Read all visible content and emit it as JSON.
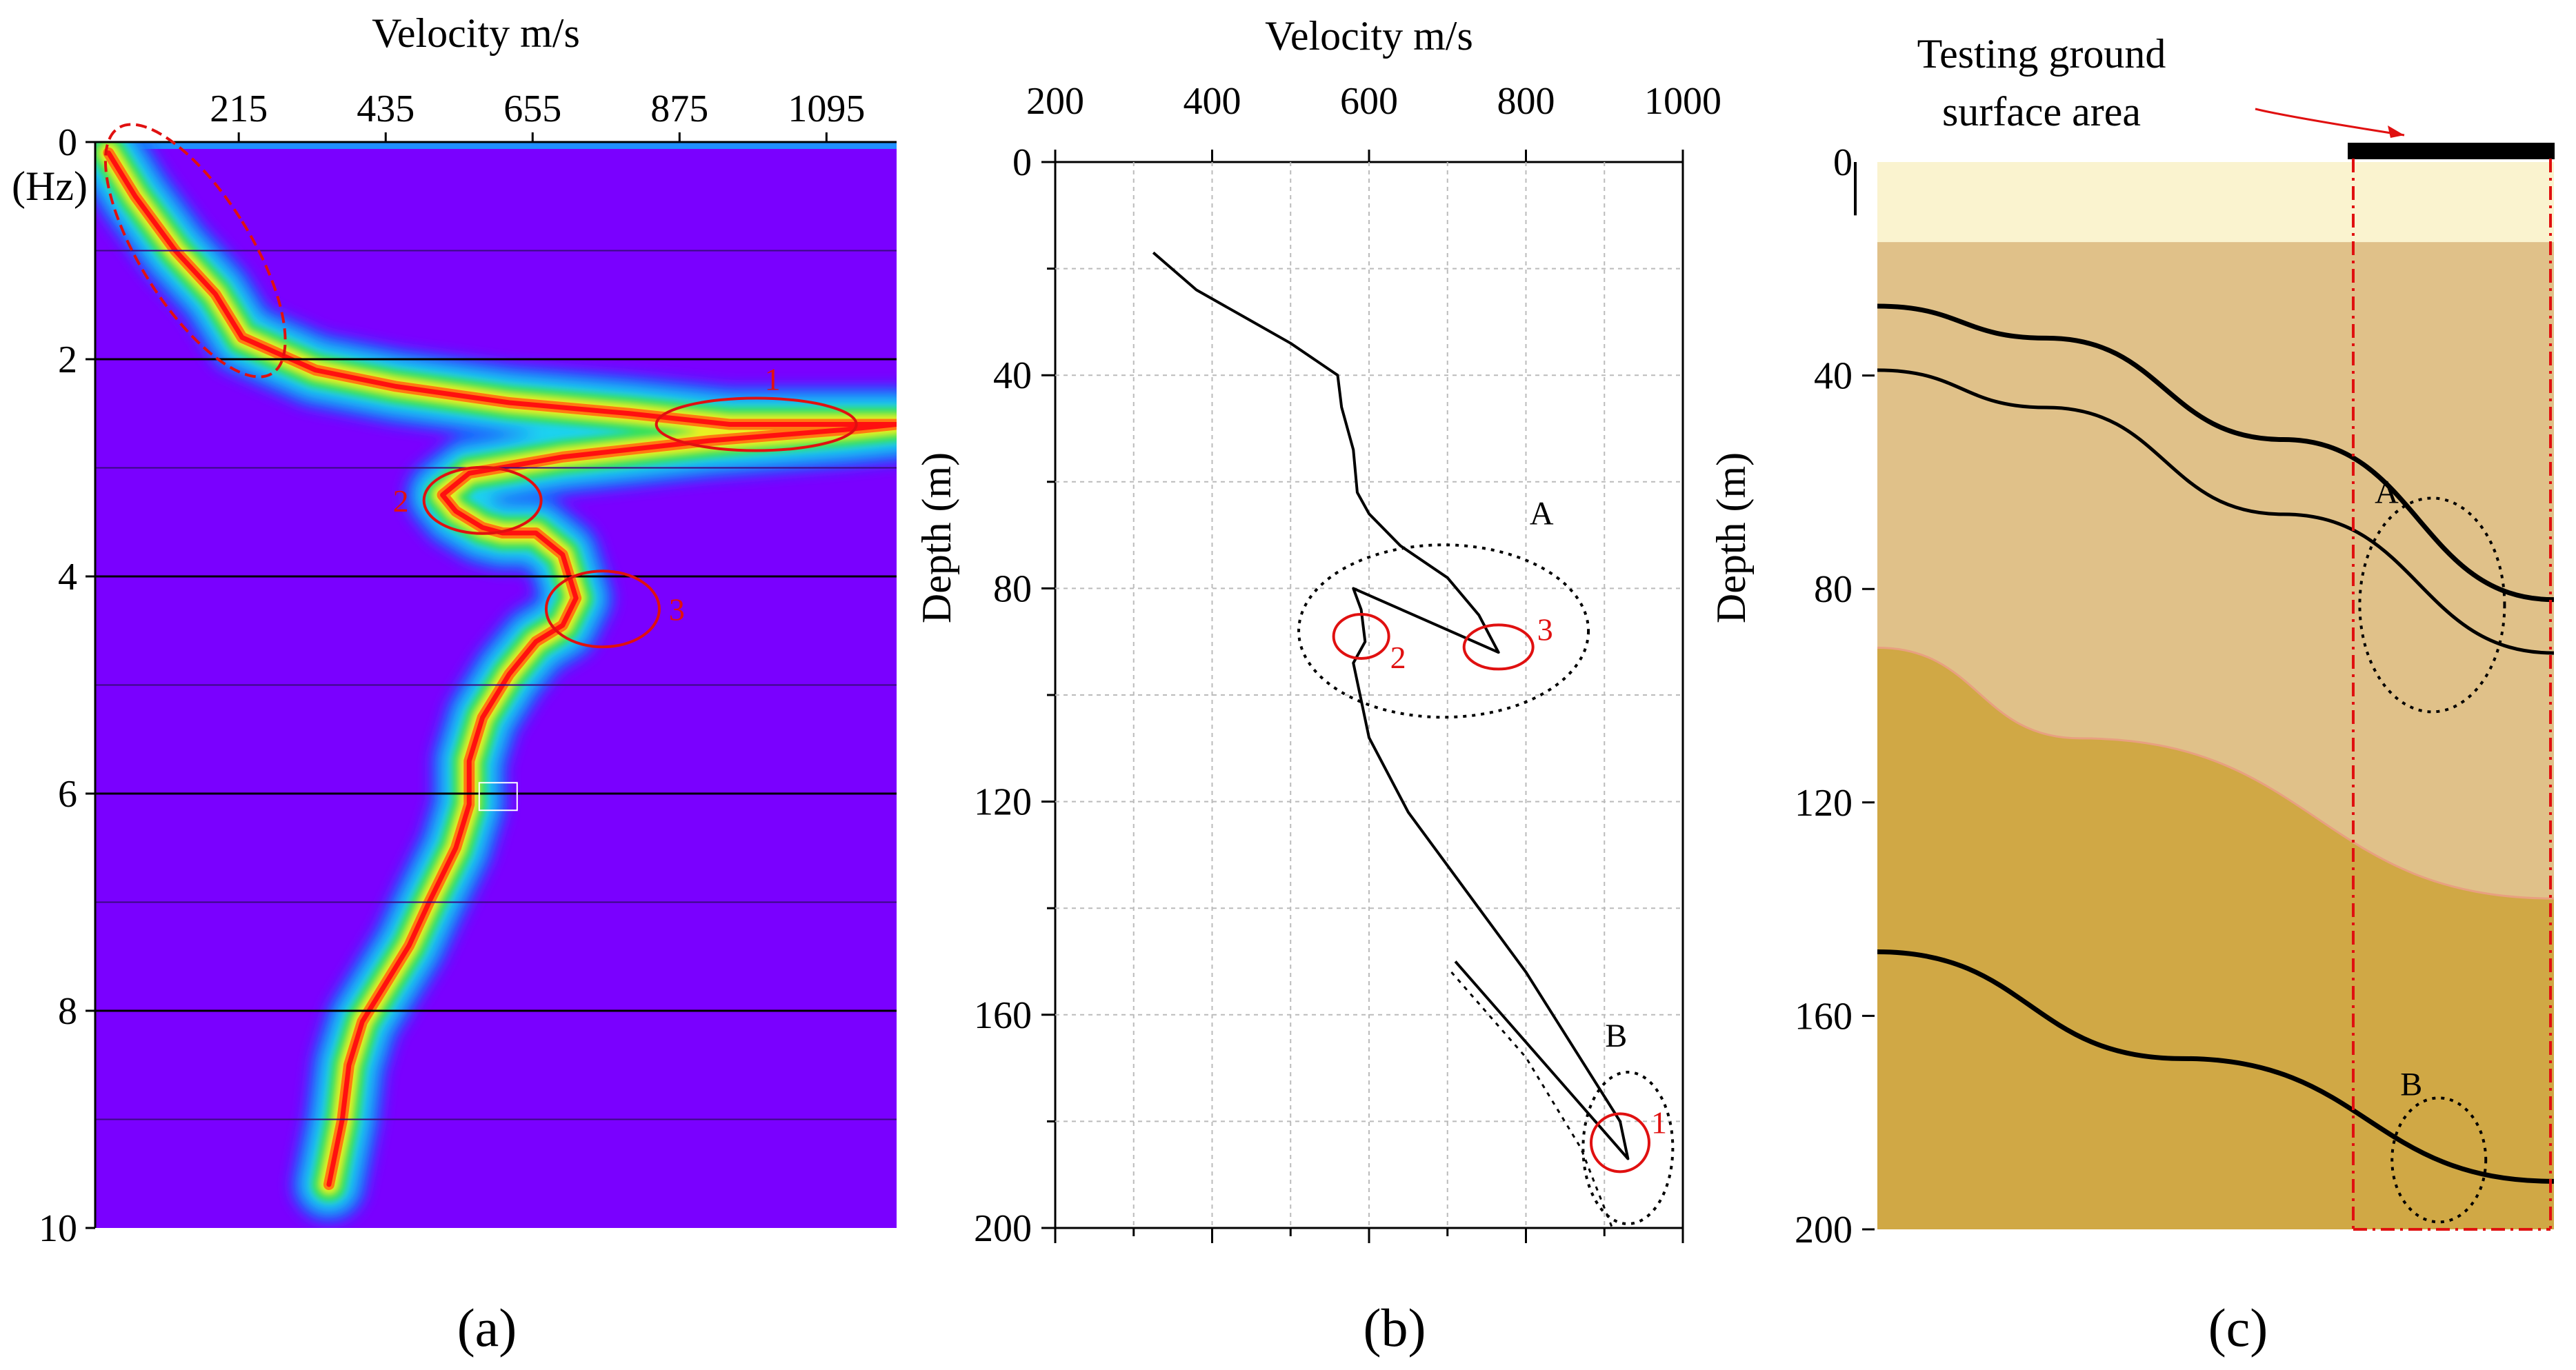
{
  "colors": {
    "spectrum_background": "#7a00ff",
    "spectrum_top_band": "#2090ff",
    "red_annotation": "#e01010",
    "ground_surface_fill": "#faf3cf",
    "layer_upper_fill": "#e0c189",
    "layer_lower_fill": "#d0a845",
    "curve_color": "#000000"
  },
  "panel_labels": [
    "(a)",
    "(b)",
    "(c)"
  ],
  "chart_data": [
    {
      "id": "a",
      "type": "heatmap",
      "title": "",
      "xlabel": "Velocity m/s",
      "ylabel": "(Hz)",
      "x_ticks": [
        "215",
        "435",
        "655",
        "875",
        "1095"
      ],
      "x_tick_values": [
        215,
        435,
        655,
        875,
        1095
      ],
      "y_ticks": [
        "0",
        "2",
        "4",
        "6",
        "8",
        "10"
      ],
      "y_tick_values": [
        0,
        2,
        4,
        6,
        8,
        10
      ],
      "xlim": [
        0,
        1200
      ],
      "ylim": [
        0,
        10
      ],
      "ridge": {
        "velocity": [
          20,
          60,
          120,
          180,
          220,
          330,
          450,
          620,
          800,
          950,
          1200,
          1120,
          920,
          700,
          560,
          520,
          540,
          580,
          610,
          660,
          700,
          720,
          700,
          660,
          620,
          580,
          560,
          560,
          540,
          500,
          470,
          430,
          400,
          380,
          370,
          350
        ],
        "frequency": [
          0.1,
          0.5,
          1.0,
          1.4,
          1.8,
          2.1,
          2.25,
          2.4,
          2.5,
          2.6,
          2.6,
          2.65,
          2.75,
          2.9,
          3.05,
          3.25,
          3.4,
          3.55,
          3.6,
          3.6,
          3.8,
          4.2,
          4.45,
          4.6,
          4.9,
          5.3,
          5.7,
          6.1,
          6.5,
          7.0,
          7.4,
          7.8,
          8.1,
          8.5,
          9.0,
          9.6
        ]
      },
      "annotations": [
        {
          "label": "1",
          "velocity": 990,
          "frequency": 2.6
        },
        {
          "label": "2",
          "velocity": 580,
          "frequency": 3.3
        },
        {
          "label": "3",
          "velocity": 760,
          "frequency": 4.3
        }
      ]
    },
    {
      "id": "b",
      "type": "line",
      "title": "",
      "xlabel": "Velocity m/s",
      "ylabel": "Depth (m)",
      "x_ticks": [
        "200",
        "400",
        "600",
        "800",
        "1000"
      ],
      "x_tick_values": [
        200,
        400,
        600,
        800,
        1000
      ],
      "y_ticks": [
        "0",
        "40",
        "80",
        "120",
        "160",
        "200"
      ],
      "y_tick_values": [
        0,
        40,
        80,
        120,
        160,
        200
      ],
      "xlim": [
        200,
        1000
      ],
      "ylim": [
        0,
        200
      ],
      "grid": true,
      "series": [
        {
          "name": "velocity profile",
          "style": "solid",
          "x": [
            325,
            380,
            440,
            500,
            550,
            560,
            565,
            580,
            585,
            600,
            640,
            700,
            740,
            765,
            580,
            590,
            595,
            580,
            600,
            650,
            720,
            800,
            860,
            920,
            930,
            710
          ],
          "y": [
            17,
            24,
            29,
            34,
            39,
            40,
            46,
            54,
            62,
            66,
            72,
            78,
            85,
            92,
            80,
            84,
            90,
            94,
            108,
            122,
            136,
            152,
            166,
            180,
            187,
            150
          ]
        },
        {
          "name": "dotted trend",
          "style": "dotted",
          "x": [
            705,
            800,
            870,
            910
          ],
          "y": [
            152,
            168,
            185,
            200
          ]
        }
      ],
      "annotations": [
        {
          "label": "A",
          "velocity": 700,
          "depth": 90
        },
        {
          "label": "B",
          "velocity": 935,
          "depth": 185
        },
        {
          "label": "1",
          "velocity": 920,
          "depth": 184
        },
        {
          "label": "2",
          "velocity": 590,
          "depth": 89
        },
        {
          "label": "3",
          "velocity": 765,
          "depth": 91
        }
      ]
    },
    {
      "id": "c",
      "type": "diagram",
      "title": "",
      "ylabel": "Depth (m)",
      "y_ticks": [
        "0",
        "40",
        "80",
        "120",
        "160",
        "200"
      ],
      "y_tick_values": [
        0,
        40,
        80,
        120,
        160,
        200
      ],
      "ylim": [
        0,
        200
      ],
      "surface_label": "Testing ground surface area",
      "surface_label_line1": "Testing ground",
      "surface_label_line2": "surface area",
      "interfaces": [
        {
          "name": "upper boundary 1",
          "x": [
            0.0,
            0.25,
            0.6,
            1.0
          ],
          "depth": [
            27,
            33,
            52,
            82
          ]
        },
        {
          "name": "upper boundary 2",
          "x": [
            0.0,
            0.25,
            0.6,
            1.0
          ],
          "depth": [
            39,
            46,
            66,
            92
          ]
        },
        {
          "name": "layer contact",
          "x": [
            0.0,
            0.3,
            1.0
          ],
          "depth": [
            91,
            108,
            138
          ]
        },
        {
          "name": "lower boundary",
          "x": [
            0.0,
            0.45,
            1.0
          ],
          "depth": [
            148,
            168,
            191
          ]
        }
      ],
      "annotations": [
        {
          "label": "A",
          "x": 0.82,
          "depth": 83
        },
        {
          "label": "B",
          "x": 0.83,
          "depth": 187
        }
      ]
    }
  ]
}
